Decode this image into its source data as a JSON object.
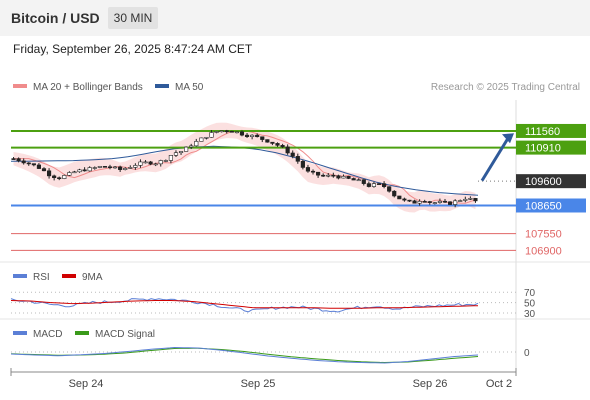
{
  "header": {
    "title": "Bitcoin / USD",
    "timeframe": "30 MIN"
  },
  "datetime": "Friday, September 26, 2025 8:47:24 AM CET",
  "chart_data": [
    {
      "type": "line",
      "title": "Bitcoin / USD",
      "subtitle": "30 MIN",
      "legend": [
        {
          "name": "MA 20 + Bollinger Bands",
          "color": "#f08c8c"
        },
        {
          "name": "MA 50",
          "color": "#2f5a9a"
        }
      ],
      "legend_position": "top-left",
      "source_note": "Research © 2025 Trading Central",
      "x_ticks": [
        "Sep 24",
        "Sep 25",
        "Sep 26",
        "Oct 2"
      ],
      "y_range": [
        106600,
        112300
      ],
      "price_sample": [
        110480,
        110380,
        110260,
        110100,
        109860,
        109720,
        109840,
        109980,
        110050,
        110110,
        110180,
        110140,
        110050,
        110150,
        110280,
        110330,
        110310,
        110430,
        110690,
        110780,
        111020,
        111220,
        111420,
        111560,
        111580,
        111530,
        111410,
        111360,
        111240,
        111120,
        110960,
        110710,
        110380,
        109970,
        109860,
        109790,
        109820,
        109740,
        109660,
        109590,
        109420,
        109480,
        109360,
        109000,
        108830,
        108750,
        108900,
        108760,
        108770,
        108720,
        108840,
        108950,
        108820
      ],
      "ma50_sample": [
        110380,
        110380,
        110390,
        110400,
        110430,
        110480,
        110580,
        110730,
        110860,
        110930,
        110960,
        110930,
        110860,
        110720,
        110520,
        110290,
        110040,
        109790,
        109560,
        109380,
        109260,
        109160,
        109100,
        109050
      ],
      "levels": [
        {
          "value": 111560,
          "label": "111560",
          "role": "resistance",
          "color": "#4ca010"
        },
        {
          "value": 110910,
          "label": "110910",
          "role": "resistance",
          "color": "#4ca010"
        },
        {
          "value": 109600,
          "label": "109600",
          "role": "last",
          "color": "#333333"
        },
        {
          "value": 108650,
          "label": "108650",
          "role": "pivot",
          "color": "#4a86e8"
        },
        {
          "value": 107550,
          "label": "107550",
          "role": "support",
          "color": "#e06666"
        },
        {
          "value": 106900,
          "label": "106900",
          "role": "support",
          "color": "#e06666"
        }
      ],
      "forecast_direction": "up"
    },
    {
      "type": "line",
      "legend": [
        {
          "name": "RSI",
          "color": "#5b7fd6"
        },
        {
          "name": "9MA",
          "color": "#d00000"
        }
      ],
      "y_ticks": [
        70,
        50,
        30
      ],
      "y_range": [
        0,
        100
      ],
      "rsi_sample": [
        55,
        52,
        46,
        44,
        50,
        52,
        55,
        58,
        56,
        52,
        46,
        38,
        34,
        40,
        42,
        38,
        34,
        40,
        44,
        38,
        42,
        44,
        46,
        47
      ],
      "ma9_sample": [
        54,
        53,
        50,
        48,
        49,
        51,
        53,
        54,
        54,
        52,
        48,
        44,
        40,
        40,
        40,
        40,
        39,
        39,
        40,
        40,
        41,
        42,
        43,
        44
      ]
    },
    {
      "type": "line",
      "legend": [
        {
          "name": "MACD",
          "color": "#5b7fd6"
        },
        {
          "name": "MACD Signal",
          "color": "#3a9a1a"
        }
      ],
      "y_ticks": [
        0
      ],
      "macd_sample": [
        -80,
        -120,
        -150,
        -110,
        -60,
        20,
        110,
        180,
        160,
        70,
        -40,
        -160,
        -250,
        -330,
        -390,
        -420,
        -440,
        -380,
        -280,
        -180,
        -120
      ],
      "signal_sample": [
        -70,
        -100,
        -130,
        -120,
        -90,
        -30,
        60,
        140,
        150,
        100,
        20,
        -90,
        -190,
        -270,
        -340,
        -390,
        -420,
        -400,
        -330,
        -250,
        -180
      ]
    }
  ]
}
